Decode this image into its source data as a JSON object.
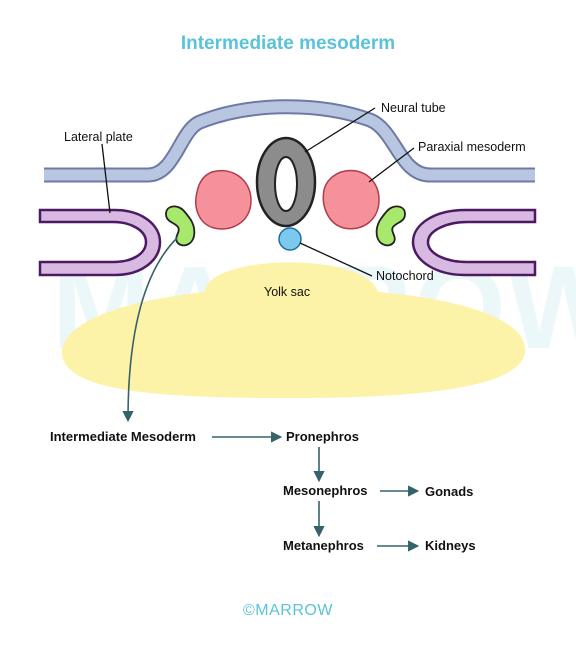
{
  "title": "Intermediate mesoderm",
  "watermark": "MARROW",
  "labels": {
    "neural_tube": "Neural tube",
    "lateral_plate": "Lateral plate",
    "paraxial_mesoderm": "Paraxial mesoderm",
    "notochord": "Notochord",
    "yolk_sac": "Yolk sac"
  },
  "flow": {
    "intermediate_mesoderm": "Intermediate Mesoderm",
    "pronephros": "Pronephros",
    "mesonephros": "Mesonephros",
    "gonads": "Gonads",
    "metanephros": "Metanephros",
    "kidneys": "Kidneys"
  },
  "footer": "©MARROW",
  "colors": {
    "title": "#5bc3d8",
    "ectoderm": "#b9c6e2",
    "lateral_plate": "#d7b9e1",
    "paraxial_mesoderm": "#f5919b",
    "intermediate_mesoderm": "#a7e86d",
    "notochord": "#7dc8ee",
    "neural_tube": "#8c8c8c",
    "yolk_sac": "#fcf2a8",
    "arrow": "#35626b"
  }
}
